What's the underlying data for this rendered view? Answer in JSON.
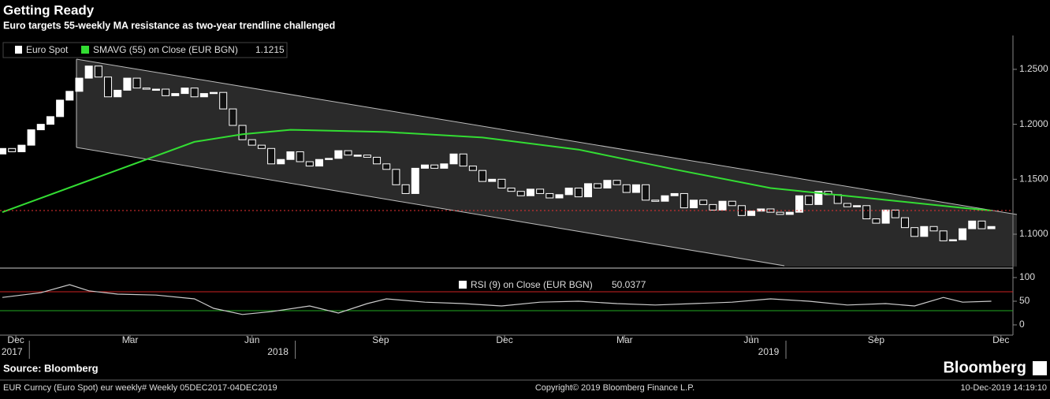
{
  "title": "Getting Ready",
  "subtitle": "Euro targets 55-weekly MA resistance as two-year trendline challenged",
  "chart_data": [
    {
      "type": "candlestick",
      "name": "Euro Spot",
      "color": "#ffffff",
      "open": [
        1.173,
        1.178,
        1.175,
        1.181,
        1.195,
        1.2,
        1.207,
        1.222,
        1.23,
        1.242,
        1.253,
        1.243,
        1.225,
        1.231,
        1.242,
        1.233,
        1.232,
        1.232,
        1.226,
        1.228,
        1.233,
        1.225,
        1.228,
        1.229,
        1.214,
        1.199,
        1.186,
        1.181,
        1.178,
        1.164,
        1.168,
        1.175,
        1.166,
        1.162,
        1.168,
        1.169,
        1.176,
        1.172,
        1.172,
        1.17,
        1.164,
        1.159,
        1.145,
        1.137,
        1.16,
        1.163,
        1.16,
        1.164,
        1.173,
        1.162,
        1.158,
        1.148,
        1.15,
        1.142,
        1.139,
        1.135,
        1.141,
        1.137,
        1.133,
        1.136,
        1.142,
        1.134,
        1.146,
        1.142,
        1.149,
        1.145,
        1.138,
        1.145,
        1.131,
        1.13,
        1.135,
        1.137,
        1.124,
        1.131,
        1.127,
        1.122,
        1.13,
        1.126,
        1.117,
        1.121,
        1.123,
        1.12,
        1.118,
        1.12,
        1.135,
        1.127,
        1.139,
        1.136,
        1.128,
        1.125,
        1.126,
        1.114,
        1.11,
        1.122,
        1.115,
        1.106,
        1.098,
        1.107,
        1.103,
        1.094,
        1.095,
        1.105,
        1.112,
        1.105
      ],
      "close": [
        1.178,
        1.175,
        1.181,
        1.195,
        1.2,
        1.207,
        1.222,
        1.23,
        1.242,
        1.253,
        1.243,
        1.225,
        1.231,
        1.242,
        1.233,
        1.232,
        1.232,
        1.226,
        1.228,
        1.233,
        1.225,
        1.228,
        1.229,
        1.214,
        1.199,
        1.186,
        1.181,
        1.178,
        1.164,
        1.168,
        1.175,
        1.166,
        1.162,
        1.168,
        1.169,
        1.176,
        1.172,
        1.172,
        1.17,
        1.164,
        1.159,
        1.145,
        1.137,
        1.16,
        1.163,
        1.16,
        1.164,
        1.173,
        1.162,
        1.158,
        1.148,
        1.15,
        1.142,
        1.139,
        1.135,
        1.141,
        1.137,
        1.133,
        1.136,
        1.142,
        1.134,
        1.146,
        1.142,
        1.149,
        1.145,
        1.138,
        1.145,
        1.131,
        1.13,
        1.135,
        1.137,
        1.124,
        1.131,
        1.127,
        1.122,
        1.13,
        1.126,
        1.117,
        1.121,
        1.123,
        1.12,
        1.118,
        1.12,
        1.135,
        1.127,
        1.139,
        1.136,
        1.128,
        1.125,
        1.126,
        1.114,
        1.11,
        1.122,
        1.115,
        1.106,
        1.098,
        1.107,
        1.103,
        1.094,
        1.095,
        1.105,
        1.112,
        1.105,
        1.107
      ],
      "sma": {
        "name": "SMAVG (55)  on Close (EUR BGN)",
        "color": "#33dd33",
        "last_value": 1.1215,
        "x": [
          0,
          10,
          20,
          25,
          30,
          40,
          50,
          60,
          70,
          80,
          90,
          100,
          103
        ],
        "values": [
          1.12,
          1.152,
          1.184,
          1.191,
          1.195,
          1.193,
          1.188,
          1.177,
          1.159,
          1.142,
          1.133,
          1.124,
          1.1215
        ]
      },
      "xlim": [
        -0.25,
        105.25
      ],
      "ylim": [
        1.0706,
        1.2808
      ],
      "yticks": [
        {
          "value": 1.1,
          "label": "1.1000"
        },
        {
          "value": 1.15,
          "label": "1.1500"
        },
        {
          "value": 1.2,
          "label": "1.2000"
        },
        {
          "value": 1.25,
          "label": "1.2500"
        }
      ],
      "xticks": [
        {
          "value": 1.4,
          "label": "Dec"
        },
        {
          "value": 13.3,
          "label": "Mar"
        },
        {
          "value": 26,
          "label": "Jun"
        },
        {
          "value": 39.4,
          "label": "Sep"
        },
        {
          "value": 52.3,
          "label": "Dec"
        },
        {
          "value": 64.8,
          "label": "Mar"
        },
        {
          "value": 78,
          "label": "Jun"
        },
        {
          "value": 91,
          "label": "Sep"
        },
        {
          "value": 104,
          "label": "Dec"
        }
      ],
      "year_ticks": [
        {
          "value": 1.0,
          "label": "2017"
        },
        {
          "value": 28.7,
          "label": "2018"
        },
        {
          "value": 79.8,
          "label": "2019"
        }
      ]
    },
    {
      "type": "line",
      "name": "RSI (9)  on Close (EUR BGN)",
      "last_value": 50.0377,
      "color": "#cccccc",
      "x": [
        0,
        4,
        7,
        9,
        12,
        16,
        20,
        22,
        25,
        28,
        32,
        35,
        38,
        40,
        44,
        48,
        52,
        56,
        60,
        64,
        68,
        72,
        76,
        80,
        84,
        88,
        92,
        95,
        98,
        100,
        103
      ],
      "values": [
        58,
        68,
        85,
        72,
        65,
        63,
        55,
        35,
        22,
        28,
        40,
        25,
        45,
        55,
        48,
        45,
        40,
        48,
        50,
        45,
        42,
        45,
        48,
        55,
        50,
        42,
        45,
        40,
        58,
        48,
        50
      ],
      "levels": [
        {
          "value": 70,
          "color": "#cc2222"
        },
        {
          "value": 30,
          "color": "#22aa22"
        }
      ],
      "ylim": [
        -21.7,
        115
      ],
      "yticks": [
        0,
        50,
        100
      ]
    }
  ],
  "source": "Source: Bloomberg",
  "brand": "Bloomberg",
  "footer": {
    "left": "EUR Curncy (Euro Spot) eur weekly#  Weekly 05DEC2017-04DEC2019",
    "center": "Copyright© 2019 Bloomberg Finance L.P.",
    "right": "10-Dec-2019 14:19:10"
  }
}
